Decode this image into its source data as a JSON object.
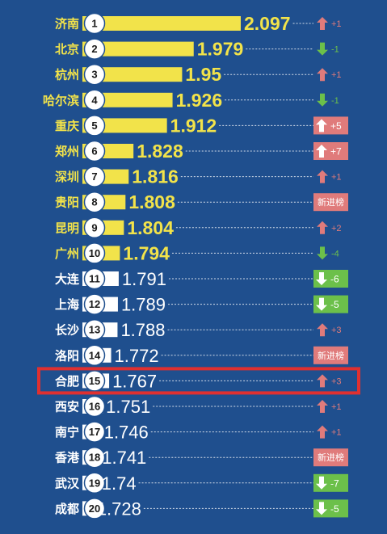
{
  "chart_data": {
    "type": "bar",
    "categories": [
      "济南",
      "北京",
      "杭州",
      "哈尔滨",
      "重庆",
      "郑州",
      "深圳",
      "贵阳",
      "昆明",
      "广州",
      "大连",
      "上海",
      "长沙",
      "洛阳",
      "合肥",
      "西安",
      "南宁",
      "香港",
      "武汉",
      "成都"
    ],
    "ranks": [
      "1",
      "2",
      "3",
      "4",
      "5",
      "6",
      "7",
      "8",
      "9",
      "10",
      "11",
      "12",
      "13",
      "14",
      "15",
      "16",
      "17",
      "18",
      "19",
      "20"
    ],
    "values": [
      2.097,
      1.979,
      1.95,
      1.926,
      1.912,
      1.828,
      1.816,
      1.808,
      1.804,
      1.794,
      1.791,
      1.789,
      1.788,
      1.772,
      1.767,
      1.751,
      1.746,
      1.741,
      1.74,
      1.728
    ],
    "value_labels": [
      "2.097",
      "1.979",
      "1.95",
      "1.926",
      "1.912",
      "1.828",
      "1.816",
      "1.808",
      "1.804",
      "1.794",
      "1.791",
      "1.789",
      "1.788",
      "1.772",
      "1.767",
      "1.751",
      "1.746",
      "1.741",
      "1.74",
      "1.728"
    ],
    "changes": [
      {
        "dir": "up",
        "text": "+1",
        "boxed": false
      },
      {
        "dir": "down",
        "text": "-1",
        "boxed": false
      },
      {
        "dir": "up",
        "text": "+1",
        "boxed": false
      },
      {
        "dir": "down",
        "text": "-1",
        "boxed": false
      },
      {
        "dir": "up",
        "text": "+5",
        "boxed": true
      },
      {
        "dir": "up",
        "text": "+7",
        "boxed": true
      },
      {
        "dir": "up",
        "text": "+1",
        "boxed": false
      },
      {
        "dir": "new",
        "text": "新进榜",
        "boxed": true
      },
      {
        "dir": "up",
        "text": "+2",
        "boxed": false
      },
      {
        "dir": "down",
        "text": "-4",
        "boxed": false
      },
      {
        "dir": "down",
        "text": "-6",
        "boxed": true
      },
      {
        "dir": "down",
        "text": "-5",
        "boxed": true
      },
      {
        "dir": "up",
        "text": "+3",
        "boxed": false
      },
      {
        "dir": "new",
        "text": "新进榜",
        "boxed": true
      },
      {
        "dir": "up",
        "text": "+3",
        "boxed": false
      },
      {
        "dir": "up",
        "text": "+1",
        "boxed": false
      },
      {
        "dir": "up",
        "text": "+1",
        "boxed": false
      },
      {
        "dir": "new",
        "text": "新进榜",
        "boxed": true
      },
      {
        "dir": "down",
        "text": "-7",
        "boxed": true
      },
      {
        "dir": "down",
        "text": "-5",
        "boxed": true
      }
    ],
    "highlighted_category": "合肥",
    "top_group_size": 10,
    "colors": {
      "background": "#1f4f8e",
      "top_bar": "#f2e34a",
      "rest_bar": "#ffffff",
      "up": "#e07b7b",
      "down": "#6cc04a",
      "new": "#e07b7b",
      "highlight": "#e03030",
      "city_top": "#f2e34a",
      "city_rest": "#ffffff"
    }
  }
}
